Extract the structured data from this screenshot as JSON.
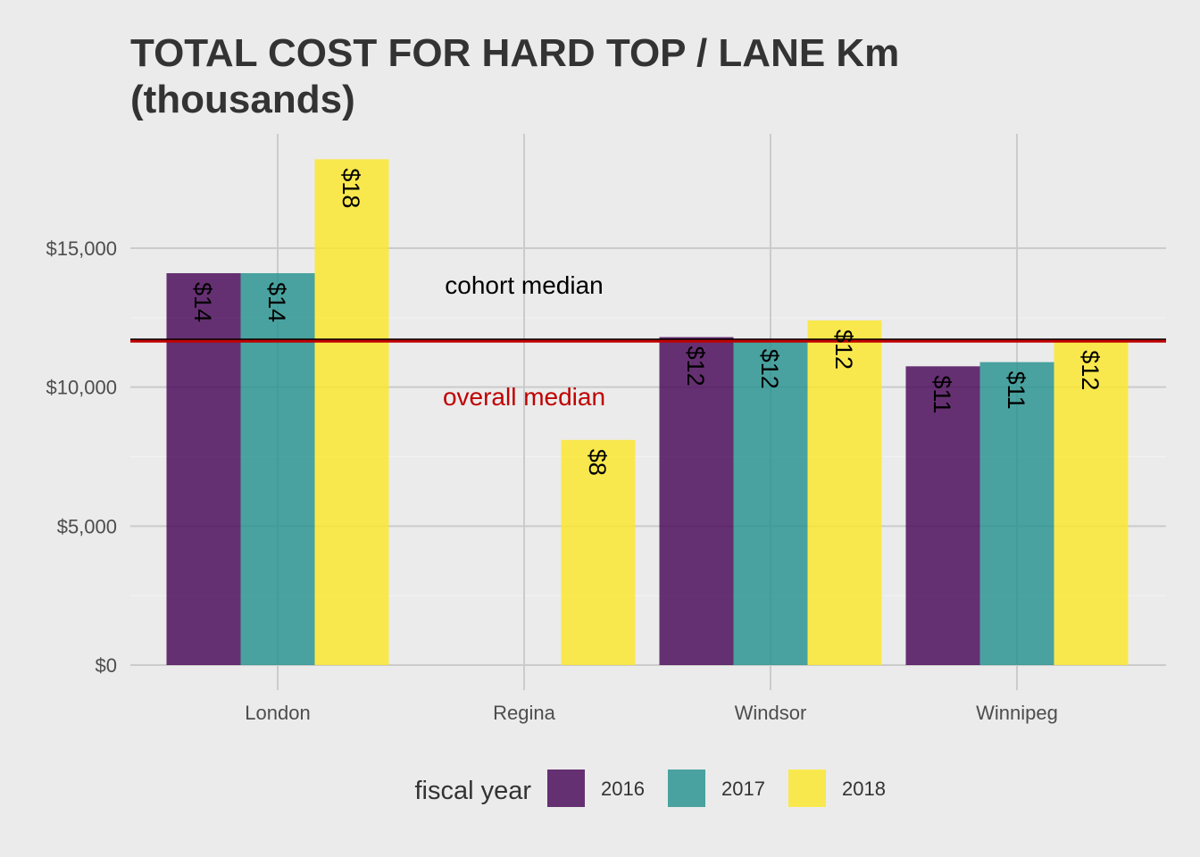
{
  "chart_data": {
    "type": "bar",
    "title_line1": "TOTAL COST FOR HARD TOP / LANE Km",
    "title_line2": "(thousands)",
    "xlabel": "",
    "ylabel": "",
    "categories": [
      "London",
      "Regina",
      "Windsor",
      "Winnipeg"
    ],
    "series": [
      {
        "name": "2016",
        "color": "#440154",
        "values": [
          14100,
          null,
          11800,
          10750
        ]
      },
      {
        "name": "2017",
        "color": "#21908C",
        "values": [
          14100,
          null,
          11700,
          10900
        ]
      },
      {
        "name": "2018",
        "color": "#FDE725",
        "values": [
          18200,
          8100,
          12400,
          11650
        ]
      }
    ],
    "data_labels": [
      [
        "$14",
        null,
        "$12",
        "$11"
      ],
      [
        "$14",
        null,
        "$12",
        "$11"
      ],
      [
        "$18",
        "$8",
        "$12",
        "$12"
      ]
    ],
    "ylim": [
      0,
      18800
    ],
    "yticks": [
      0,
      5000,
      10000,
      15000
    ],
    "ytick_labels": [
      "$0",
      "$5,000",
      "$10,000",
      "$15,000"
    ],
    "bar_opacity": 0.8,
    "reference_lines": [
      {
        "name": "cohort median",
        "label": "cohort median",
        "value": 11700,
        "color": "#000000"
      },
      {
        "name": "overall median",
        "label": "overall median",
        "value": 11650,
        "color": "#c00000"
      }
    ],
    "legend": {
      "title": "fiscal year",
      "position": "bottom",
      "entries": [
        "2016",
        "2017",
        "2018"
      ]
    },
    "grid": true
  }
}
